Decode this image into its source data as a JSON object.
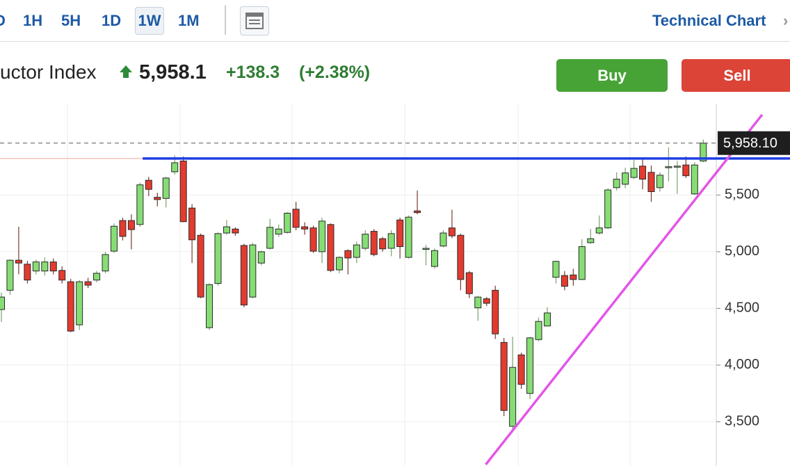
{
  "toolbar": {
    "ranges": [
      "D",
      "1H",
      "5H",
      "1D",
      "1W",
      "1M"
    ],
    "selected": "1W",
    "link": "Technical Chart"
  },
  "header": {
    "name": "uctor Index",
    "price": "5,958.1",
    "change": "+138.3",
    "change_pct": "(+2.38%)",
    "buy": "Buy",
    "sell": "Sell"
  },
  "chart_data": {
    "type": "candlestick",
    "open": [
      4490,
      4660,
      4925,
      4890,
      4830,
      4830,
      4910,
      4835,
      4735,
      4355,
      4735,
      4750,
      4830,
      5005,
      5275,
      5275,
      5240,
      5630,
      5480,
      5470,
      5705,
      5800,
      5385,
      5145,
      4330,
      4720,
      5165,
      5200,
      5055,
      4600,
      4900,
      5030,
      5155,
      5170,
      5375,
      5220,
      5210,
      5000,
      5240,
      4840,
      5010,
      4950,
      5030,
      5180,
      5115,
      5030,
      5280,
      4950,
      5360,
      5020,
      4870,
      5050,
      5210,
      5145,
      4815,
      4505,
      4585,
      4660,
      4200,
      3460,
      4090,
      3750,
      4225,
      4345,
      4775,
      4790,
      4795,
      4755,
      5080,
      5165,
      5210,
      5565,
      5595,
      5655,
      5755,
      5700,
      5565,
      5745,
      5750,
      5765,
      5510,
      5800
    ],
    "high": [
      4640,
      4930,
      5220,
      4920,
      4930,
      4950,
      4940,
      4870,
      4760,
      4750,
      4770,
      4830,
      5000,
      5250,
      5300,
      5330,
      5610,
      5660,
      5520,
      5660,
      5850,
      5840,
      5420,
      5160,
      4720,
      5170,
      5280,
      5215,
      5070,
      5080,
      5010,
      5290,
      5240,
      5350,
      5440,
      5260,
      5230,
      5300,
      5250,
      4960,
      5020,
      5090,
      5190,
      5200,
      5130,
      5190,
      5300,
      5320,
      5540,
      5060,
      5030,
      5190,
      5370,
      5160,
      4830,
      4610,
      4600,
      4700,
      4240,
      4250,
      4110,
      4250,
      4420,
      4510,
      4920,
      4830,
      4850,
      5110,
      5200,
      5320,
      5560,
      5700,
      5740,
      5810,
      5830,
      5760,
      5700,
      5920,
      5800,
      5840,
      5790,
      5990
    ],
    "low": [
      4380,
      4620,
      4800,
      4720,
      4800,
      4790,
      4800,
      4720,
      4290,
      4310,
      4680,
      4730,
      4810,
      4990,
      5100,
      5020,
      5220,
      5490,
      5400,
      5390,
      5680,
      5260,
      4900,
      4590,
      4310,
      4700,
      5150,
      5140,
      4510,
      4590,
      4880,
      5020,
      5130,
      5160,
      5190,
      5150,
      4990,
      4900,
      4820,
      4810,
      4800,
      4900,
      5010,
      4960,
      5000,
      4960,
      4940,
      4940,
      5330,
      4880,
      4850,
      5040,
      5120,
      4660,
      4590,
      4390,
      4520,
      4230,
      3550,
      3430,
      3790,
      3700,
      4210,
      4340,
      4720,
      4660,
      4700,
      4750,
      5070,
      5150,
      5200,
      5540,
      5560,
      5640,
      5550,
      5440,
      5530,
      5620,
      5510,
      5650,
      5500,
      5790
    ],
    "close": [
      4600,
      4925,
      4900,
      4750,
      4910,
      4910,
      4830,
      4750,
      4300,
      4735,
      4705,
      4810,
      4975,
      5225,
      5135,
      5195,
      5590,
      5550,
      5460,
      5650,
      5785,
      5265,
      5105,
      4600,
      4710,
      5160,
      5220,
      5165,
      4530,
      5060,
      5000,
      5215,
      5200,
      5340,
      5215,
      5200,
      5005,
      5270,
      4835,
      4950,
      4945,
      5060,
      5155,
      4975,
      5025,
      5160,
      5045,
      5305,
      5345,
      5030,
      5010,
      5165,
      5140,
      4755,
      4630,
      4600,
      4545,
      4275,
      3600,
      3980,
      3830,
      4240,
      4385,
      4460,
      4915,
      4695,
      4755,
      5045,
      5115,
      5210,
      5545,
      5640,
      5695,
      5735,
      5640,
      5530,
      5675,
      5750,
      5755,
      5670,
      5765,
      5958.1
    ],
    "up_color": "#86dd74",
    "down_color": "#e33b2e",
    "ylim": [
      3110,
      6300
    ],
    "yticks": [
      {
        "value": 3500,
        "label": "3,500"
      },
      {
        "value": 4000,
        "label": "4,000"
      },
      {
        "value": 4500,
        "label": "4,500"
      },
      {
        "value": 5000,
        "label": "5,000"
      },
      {
        "value": 5500,
        "label": "5,500"
      }
    ],
    "last_price": {
      "value": 5958.1,
      "label": "5,958.10"
    },
    "hline": {
      "value": 5822,
      "color": "#1f3ee6",
      "start": 16.3
    },
    "trendline": {
      "x": [
        55.9,
        87.8
      ],
      "values": [
        3123,
        6209
      ],
      "color": "#e356e8"
    },
    "grid": true
  }
}
